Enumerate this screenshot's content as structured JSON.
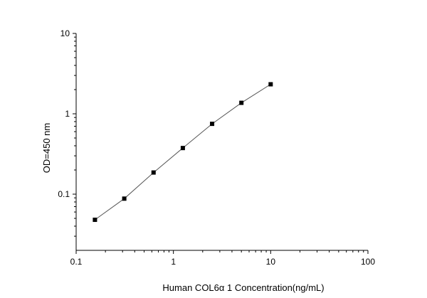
{
  "chart_data": {
    "type": "scatter",
    "xlabel": "Human COL6α 1 Concentration(ng/mL)",
    "ylabel": "OD=450 nm",
    "x_scale": "log",
    "y_scale": "log",
    "xlim": [
      0.1,
      100
    ],
    "ylim": [
      0.02,
      10
    ],
    "x_ticks": [
      {
        "value": 0.1,
        "label": "0.1"
      },
      {
        "value": 1,
        "label": "1"
      },
      {
        "value": 10,
        "label": "10"
      },
      {
        "value": 100,
        "label": "100"
      }
    ],
    "y_ticks": [
      {
        "value": 0.1,
        "label": "0.1"
      },
      {
        "value": 1,
        "label": "1"
      },
      {
        "value": 10,
        "label": "10"
      }
    ],
    "grid": false,
    "fit_line": true,
    "marker": "square",
    "points": [
      {
        "x": 0.156,
        "y": 0.048
      },
      {
        "x": 0.3125,
        "y": 0.088
      },
      {
        "x": 0.625,
        "y": 0.186
      },
      {
        "x": 1.25,
        "y": 0.375
      },
      {
        "x": 2.5,
        "y": 0.75
      },
      {
        "x": 5,
        "y": 1.37
      },
      {
        "x": 10,
        "y": 2.33
      }
    ]
  },
  "colors": {
    "axis": "#000000",
    "marker": "#000000",
    "line": "#555555"
  }
}
